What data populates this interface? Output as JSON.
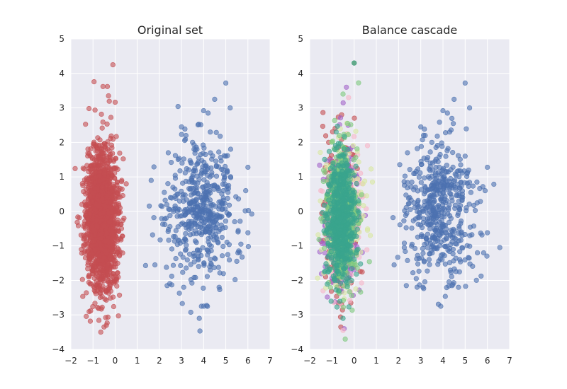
{
  "chart_data": [
    {
      "type": "scatter",
      "title": "Original set",
      "xlabel": "",
      "ylabel": "",
      "xlim": [
        -2,
        7
      ],
      "ylim": [
        -4,
        5
      ],
      "x_ticks": [
        -2,
        -1,
        0,
        1,
        2,
        3,
        4,
        5,
        6,
        7
      ],
      "y_ticks": [
        -4,
        -3,
        -2,
        -1,
        0,
        1,
        2,
        3,
        4,
        5
      ],
      "grid": true,
      "background": "#eaeaf2",
      "series": [
        {
          "color": "#c44e52",
          "distribution": {
            "center": [
              -0.6,
              -0.2
            ],
            "std": [
              0.35,
              1.0
            ],
            "count": 1900
          },
          "outliers": [
            [
              -0.1,
              4.25
            ],
            [
              -0.55,
              3.62
            ],
            [
              -0.35,
              3.62
            ],
            [
              -0.3,
              3.35
            ],
            [
              -0.5,
              -3.35
            ],
            [
              -0.65,
              -3.5
            ],
            [
              -0.4,
              -3.3
            ],
            [
              0.3,
              0.9
            ],
            [
              0.5,
              0.8
            ],
            [
              -1.5,
              0.2
            ],
            [
              -1.4,
              -1.2
            ],
            [
              0.4,
              -0.2
            ]
          ]
        },
        {
          "color": "#4c72b0",
          "distribution": {
            "center": [
              3.9,
              0.0
            ],
            "std": [
              0.8,
              1.0
            ],
            "count": 500
          },
          "outliers": [
            [
              5.0,
              3.72
            ],
            [
              4.5,
              3.25
            ],
            [
              5.2,
              3.0
            ],
            [
              4.0,
              2.92
            ],
            [
              4.2,
              2.85
            ],
            [
              3.0,
              2.45
            ],
            [
              3.2,
              2.2
            ],
            [
              3.5,
              2.0
            ],
            [
              4.3,
              2.3
            ],
            [
              5.0,
              1.6
            ],
            [
              6.0,
              1.28
            ],
            [
              5.9,
              0.6
            ],
            [
              6.0,
              -0.62
            ],
            [
              1.75,
              -0.18
            ],
            [
              1.8,
              -1.55
            ],
            [
              2.35,
              -2.15
            ],
            [
              3.1,
              -2.2
            ],
            [
              3.9,
              -2.75
            ],
            [
              4.7,
              -2.2
            ],
            [
              5.55,
              -1.2
            ],
            [
              2.5,
              0.4
            ],
            [
              2.4,
              1.7
            ]
          ]
        }
      ]
    },
    {
      "type": "scatter",
      "title": "Balance cascade",
      "xlabel": "",
      "ylabel": "",
      "xlim": [
        -2,
        7
      ],
      "ylim": [
        -4,
        5
      ],
      "x_ticks": [
        -2,
        -1,
        0,
        1,
        2,
        3,
        4,
        5,
        6,
        7
      ],
      "y_ticks": [
        -4,
        -3,
        -2,
        -1,
        0,
        1,
        2,
        3,
        4,
        5
      ],
      "grid": true,
      "background": "#eaeaf2",
      "series": [
        {
          "color": "#c44e52",
          "distribution": {
            "center": [
              -0.6,
              -0.2
            ],
            "std": [
              0.35,
              1.0
            ],
            "count": 500
          },
          "outliers": [
            [
              -0.6,
              -3.35
            ],
            [
              0.0,
              4.3
            ]
          ]
        },
        {
          "color": "#a366c9",
          "distribution": {
            "center": [
              -0.55,
              -0.2
            ],
            "std": [
              0.35,
              1.0
            ],
            "count": 350
          },
          "outliers": [
            [
              -0.35,
              3.6
            ],
            [
              -0.45,
              -3.4
            ],
            [
              -1.3,
              -1.6
            ]
          ]
        },
        {
          "color": "#f7b6c8",
          "distribution": {
            "center": [
              -0.5,
              -0.2
            ],
            "std": [
              0.4,
              1.0
            ],
            "count": 220
          },
          "outliers": [
            [
              -0.25,
              3.3
            ],
            [
              -1.4,
              -2.3
            ],
            [
              -1.5,
              0.6
            ]
          ]
        },
        {
          "color": "#d8e7a2",
          "distribution": {
            "center": [
              -0.5,
              0.0
            ],
            "std": [
              0.45,
              1.05
            ],
            "count": 180
          },
          "outliers": [
            [
              0.4,
              0.8
            ],
            [
              0.35,
              -0.2
            ]
          ]
        },
        {
          "color": "#7fc97f",
          "distribution": {
            "center": [
              -0.55,
              -0.1
            ],
            "std": [
              0.35,
              1.0
            ],
            "count": 420
          },
          "outliers": [
            [
              -0.4,
              -3.7
            ],
            [
              -0.5,
              3.4
            ],
            [
              0.0,
              4.3
            ]
          ]
        },
        {
          "color": "#3aa58d",
          "distribution": {
            "center": [
              -0.6,
              -0.2
            ],
            "std": [
              0.3,
              0.95
            ],
            "count": 650
          },
          "outliers": [
            [
              -0.5,
              -3.1
            ],
            [
              0.0,
              4.3
            ]
          ]
        },
        {
          "color": "#4c72b0",
          "distribution": {
            "center": [
              3.9,
              0.0
            ],
            "std": [
              0.8,
              1.0
            ],
            "count": 500
          },
          "outliers": [
            [
              5.0,
              3.72
            ],
            [
              4.5,
              3.25
            ],
            [
              5.2,
              3.0
            ],
            [
              4.0,
              2.92
            ],
            [
              4.2,
              2.85
            ],
            [
              3.0,
              2.45
            ],
            [
              3.2,
              2.2
            ],
            [
              3.5,
              2.0
            ],
            [
              4.3,
              2.3
            ],
            [
              5.0,
              1.6
            ],
            [
              6.0,
              1.28
            ],
            [
              5.9,
              0.6
            ],
            [
              6.0,
              -0.62
            ],
            [
              1.75,
              -0.18
            ],
            [
              1.8,
              -1.55
            ],
            [
              2.35,
              -2.15
            ],
            [
              3.1,
              -2.2
            ],
            [
              3.9,
              -2.75
            ],
            [
              4.7,
              -2.2
            ],
            [
              5.55,
              -1.2
            ],
            [
              2.5,
              0.4
            ],
            [
              2.4,
              1.7
            ]
          ]
        }
      ]
    }
  ]
}
